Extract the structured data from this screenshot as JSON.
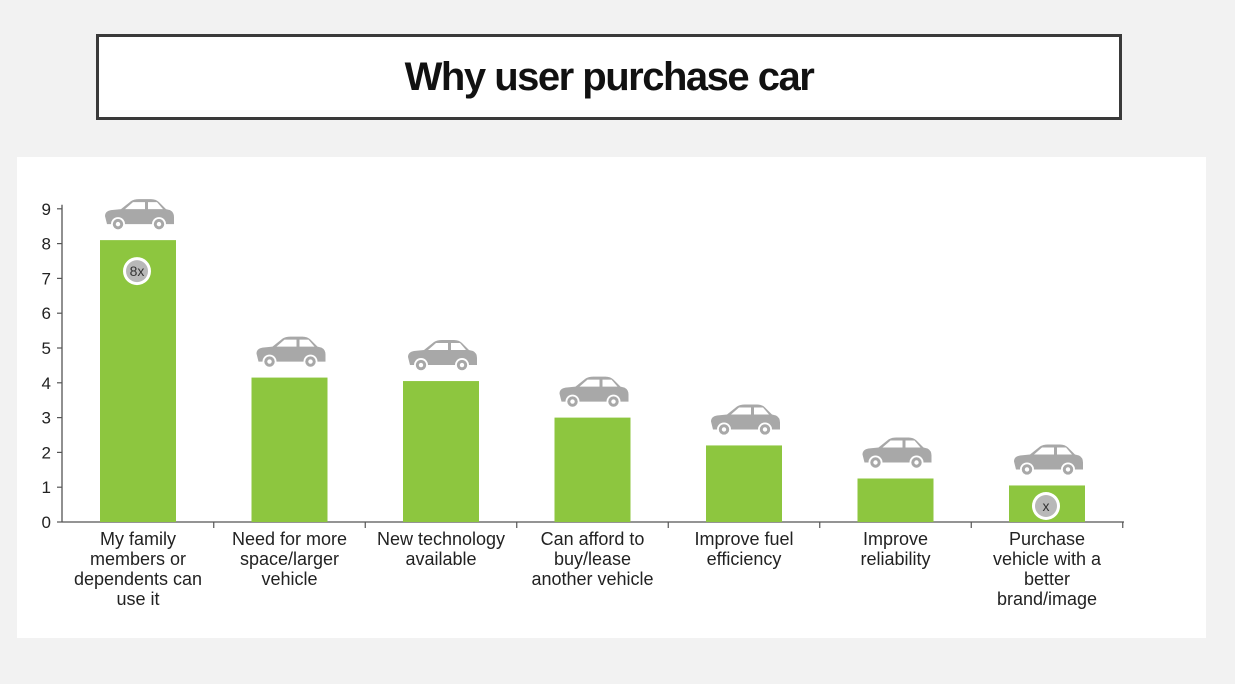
{
  "header": {
    "title": "Why user purchase car"
  },
  "colors": {
    "bar": "#8dc63f",
    "car_icon": "#a8a8a8",
    "axis": "#555555",
    "badge": "#b8b8b8"
  },
  "chart_data": {
    "type": "bar",
    "title": "Why user purchase car",
    "xlabel": "",
    "ylabel": "",
    "ylim": [
      0,
      9
    ],
    "yticks": [
      0,
      1,
      2,
      3,
      4,
      5,
      6,
      7,
      8,
      9
    ],
    "categories": [
      "My family members or dependents can use it",
      "Need for more space/larger vehicle",
      "New technology available",
      "Can afford to buy/lease another vehicle",
      "Improve fuel efficiency",
      "Improve reliability",
      "Purchase vehicle with a better brand/image"
    ],
    "category_lines": [
      [
        "My family",
        "members or",
        "dependents can",
        "use it"
      ],
      [
        "Need for more",
        "space/larger",
        "vehicle"
      ],
      [
        "New technology",
        "available"
      ],
      [
        "Can afford to",
        "buy/lease",
        "another vehicle"
      ],
      [
        "Improve fuel",
        "efficiency"
      ],
      [
        "Improve",
        "reliability"
      ],
      [
        "Purchase",
        "vehicle with a",
        "better",
        "brand/image"
      ]
    ],
    "values": [
      8.1,
      4.15,
      4.05,
      3.0,
      2.2,
      1.25,
      1.05
    ],
    "bar_icon": "car-icon",
    "badges": [
      {
        "bar_index": 0,
        "text": "8x"
      },
      {
        "bar_index": 6,
        "text": "x"
      }
    ],
    "grid": false,
    "legend": "none"
  }
}
